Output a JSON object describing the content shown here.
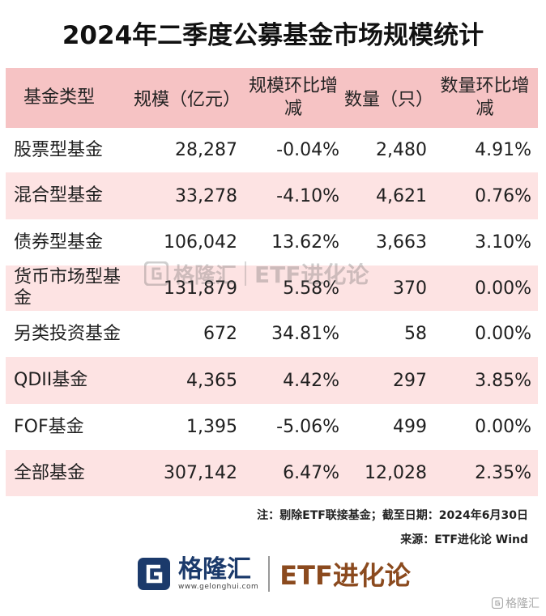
{
  "title": "2024年二季度公募基金市场规模统计",
  "headers": [
    "基金类型",
    "规模（亿元）",
    "规模环比增减",
    "数量（只）",
    "数量环比增减"
  ],
  "rows": [
    {
      "type": "股票型基金",
      "scale": "28,287",
      "scale_change": "-0.04%",
      "count": "2,480",
      "count_change": "4.91%"
    },
    {
      "type": "混合型基金",
      "scale": "33,278",
      "scale_change": "-4.10%",
      "count": "4,621",
      "count_change": "0.76%"
    },
    {
      "type": "债券型基金",
      "scale": "106,042",
      "scale_change": "13.62%",
      "count": "3,663",
      "count_change": "3.10%"
    },
    {
      "type": "货币市场型基金",
      "scale": "131,879",
      "scale_change": "5.58%",
      "count": "370",
      "count_change": "0.00%"
    },
    {
      "type": "另类投资基金",
      "scale": "672",
      "scale_change": "34.81%",
      "count": "58",
      "count_change": "0.00%"
    },
    {
      "type": "QDII基金",
      "scale": "4,365",
      "scale_change": "4.42%",
      "count": "297",
      "count_change": "3.85%"
    },
    {
      "type": "FOF基金",
      "scale": "1,395",
      "scale_change": "-5.06%",
      "count": "499",
      "count_change": "0.00%"
    },
    {
      "type": "全部基金",
      "scale": "307,142",
      "scale_change": "6.47%",
      "count": "12,028",
      "count_change": "2.35%"
    }
  ],
  "note": "注：剔除ETF联接基金；截至日期：2024年6月30日",
  "source": "来源：ETF进化论 Wind",
  "watermark": {
    "brand": "格隆汇",
    "etf": "ETF进化论"
  },
  "footer": {
    "brand": "格隆汇",
    "url": "www.gelonghui.com",
    "etf": "ETF进化论"
  },
  "corner_mark": "格隆汇",
  "colors": {
    "header_bg": "#f6c3c4",
    "stripe_bg": "#fde3e3",
    "brand_blue": "#1b3a6b",
    "etf_brown": "#8b4a1e"
  },
  "chart_data": {
    "type": "table",
    "title": "2024年二季度公募基金市场规模统计",
    "columns": [
      "基金类型",
      "规模（亿元）",
      "规模环比增减",
      "数量（只）",
      "数量环比增减"
    ],
    "rows": [
      [
        "股票型基金",
        28287,
        "-0.04%",
        2480,
        "4.91%"
      ],
      [
        "混合型基金",
        33278,
        "-4.10%",
        4621,
        "0.76%"
      ],
      [
        "债券型基金",
        106042,
        "13.62%",
        3663,
        "3.10%"
      ],
      [
        "货币市场型基金",
        131879,
        "5.58%",
        370,
        "0.00%"
      ],
      [
        "另类投资基金",
        672,
        "34.81%",
        58,
        "0.00%"
      ],
      [
        "QDII基金",
        4365,
        "4.42%",
        297,
        "3.85%"
      ],
      [
        "FOF基金",
        1395,
        "-5.06%",
        499,
        "0.00%"
      ],
      [
        "全部基金",
        307142,
        "6.47%",
        12028,
        "2.35%"
      ]
    ]
  }
}
